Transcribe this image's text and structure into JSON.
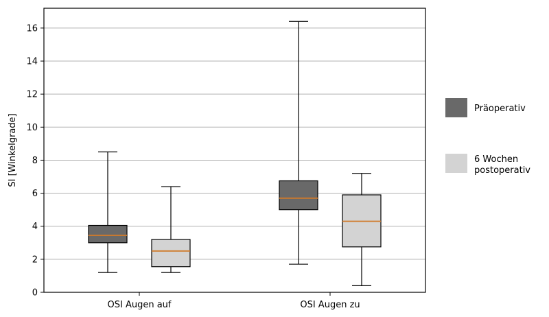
{
  "chart_data": {
    "type": "box",
    "title": "",
    "xlabel": "",
    "ylabel": "SI [Winkelgrade]",
    "ylim": [
      0,
      17.2
    ],
    "yticks": [
      0,
      2,
      4,
      6,
      8,
      10,
      12,
      14,
      16
    ],
    "grid": "horizontal",
    "legend_position": "right",
    "categories": [
      "OSI Augen auf",
      "OSI Augen zu"
    ],
    "series": [
      {
        "name": "Präoperativ",
        "color": "#696969",
        "boxes": [
          {
            "whisker_low": 1.2,
            "q1": 3.0,
            "median": 3.45,
            "q3": 4.05,
            "whisker_high": 8.5
          },
          {
            "whisker_low": 1.7,
            "q1": 5.0,
            "median": 5.7,
            "q3": 6.75,
            "whisker_high": 16.4
          }
        ]
      },
      {
        "name": "6 Wochen postoperativ",
        "legend_lines": [
          "6 Wochen",
          "postoperativ"
        ],
        "color": "#d3d3d3",
        "boxes": [
          {
            "whisker_low": 1.2,
            "q1": 1.55,
            "median": 2.5,
            "q3": 3.2,
            "whisker_high": 6.4
          },
          {
            "whisker_low": 0.4,
            "q1": 2.75,
            "median": 4.3,
            "q3": 5.9,
            "whisker_high": 7.2
          }
        ]
      }
    ],
    "median_color": "#d07a2a"
  }
}
